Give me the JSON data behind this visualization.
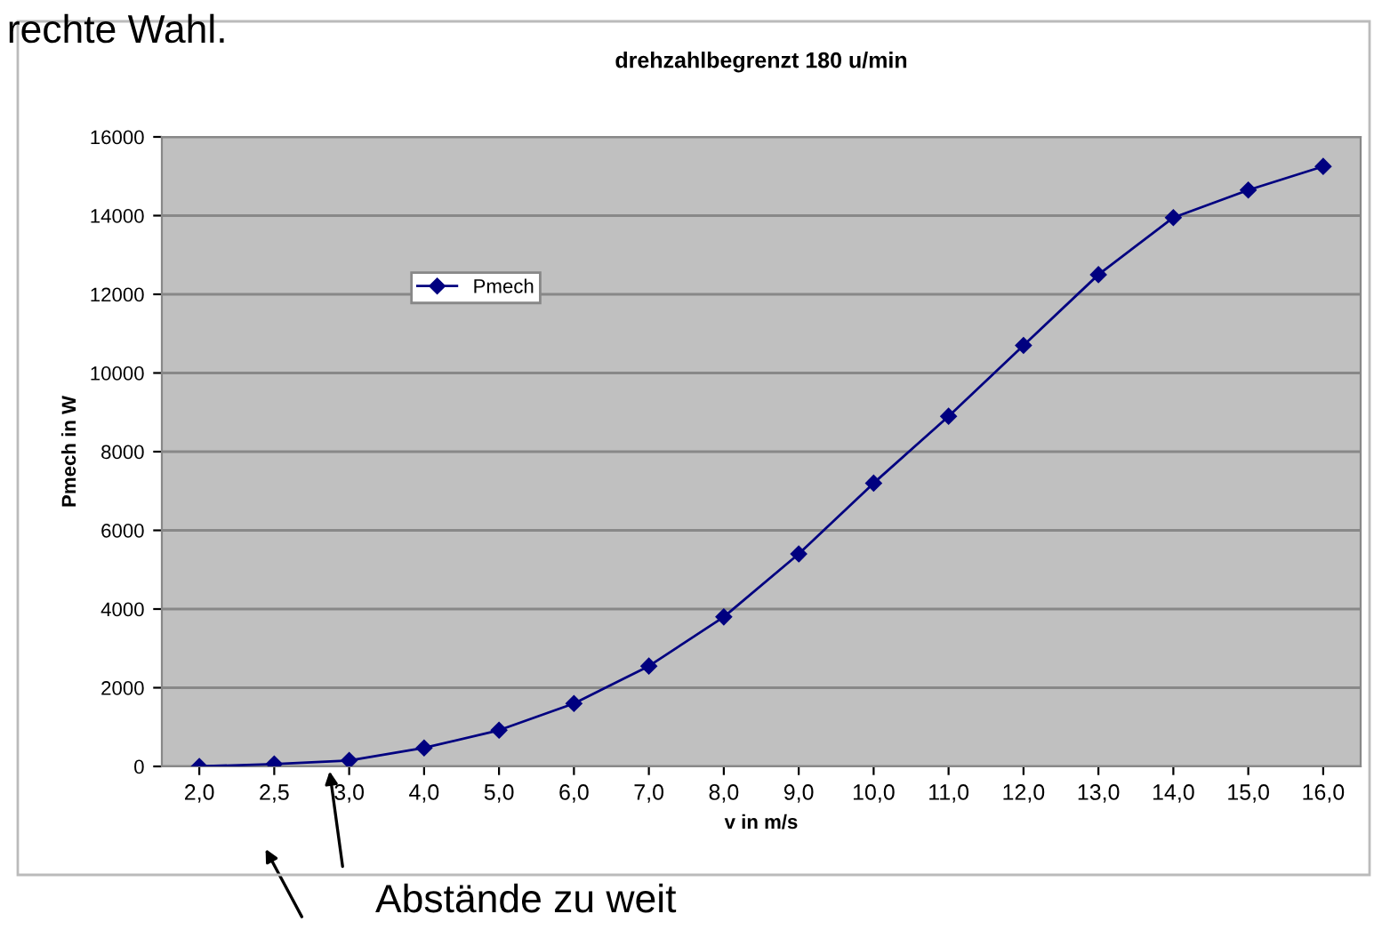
{
  "chart_data": {
    "type": "line",
    "title": "drehzahlbegrenzt 180 u/min",
    "xlabel": "v in m/s",
    "ylabel": "Pmech in W",
    "categories": [
      "2,0",
      "2,5",
      "3,0",
      "4,0",
      "5,0",
      "6,0",
      "7,0",
      "8,0",
      "9,0",
      "10,0",
      "11,0",
      "12,0",
      "13,0",
      "14,0",
      "15,0",
      "16,0"
    ],
    "series": [
      {
        "name": "Pmech",
        "color": "#000080",
        "values": [
          0,
          60,
          150,
          470,
          920,
          1600,
          2550,
          3800,
          5400,
          7200,
          8900,
          10700,
          12500,
          13950,
          14650,
          15250
        ]
      }
    ],
    "ylim": [
      0,
      16000
    ],
    "yticks": [
      0,
      2000,
      4000,
      6000,
      8000,
      10000,
      12000,
      14000,
      16000
    ],
    "grid": "y",
    "legend": "top left",
    "marker": "diamond",
    "line_style": "solid",
    "annotations": [
      "rechte Wahl.",
      "Abstände zu weit"
    ]
  }
}
